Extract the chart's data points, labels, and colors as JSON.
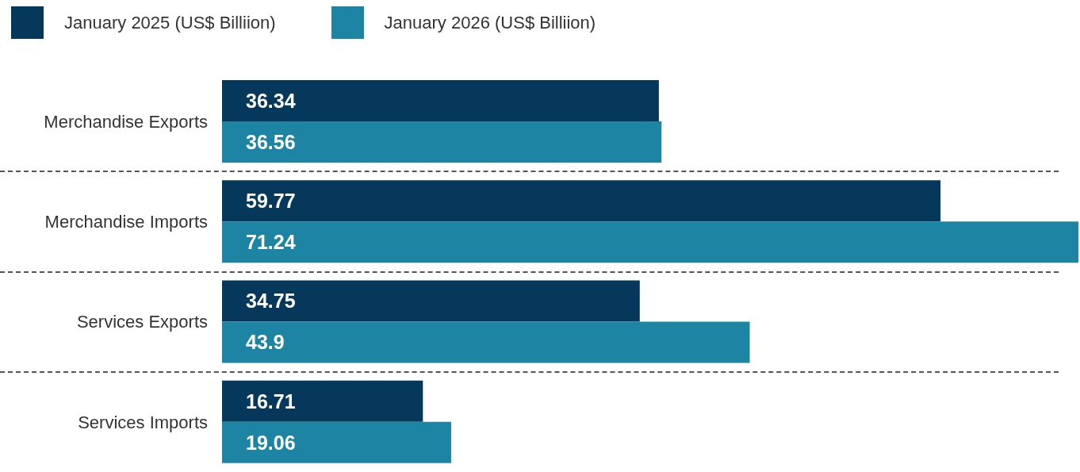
{
  "chart_data": {
    "type": "bar",
    "orientation": "horizontal",
    "categories": [
      "Merchandise Exports",
      "Merchandise Imports",
      "Services Exports",
      "Services Imports"
    ],
    "series": [
      {
        "name": "January 2025 (US$ Billiion)",
        "color": "#05385a",
        "values": [
          36.34,
          59.77,
          34.75,
          16.71
        ]
      },
      {
        "name": "January 2026 (US$ Billiion)",
        "color": "#1e84a4",
        "values": [
          36.56,
          71.24,
          43.9,
          19.06
        ]
      }
    ],
    "data_labels": true,
    "legend": "top left",
    "grid": "y",
    "tick_labels": "y"
  }
}
